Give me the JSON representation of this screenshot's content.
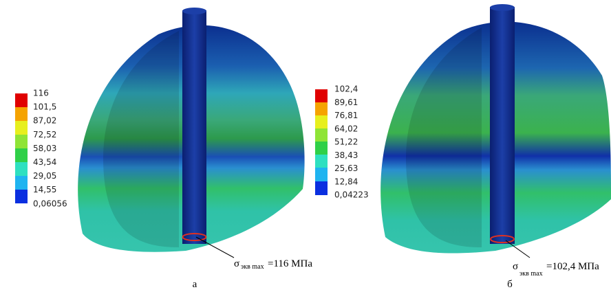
{
  "figures": [
    {
      "legend": [
        "116",
        "101,5",
        "87,02",
        "72,52",
        "58,03",
        "43,54",
        "29,05",
        "14,55",
        "0,06056"
      ],
      "annotation": {
        "symbol": "σ",
        "subscript": "экв max",
        "text": "=116 МПа"
      },
      "caption": "а"
    },
    {
      "legend": [
        "102,4",
        "89,61",
        "76,81",
        "64,02",
        "51,22",
        "38,43",
        "25,63",
        "12,84",
        "0,04223"
      ],
      "annotation": {
        "symbol": "σ",
        "subscript": "экв max",
        "text": "=102,4 МПа"
      },
      "caption": "б"
    }
  ]
}
